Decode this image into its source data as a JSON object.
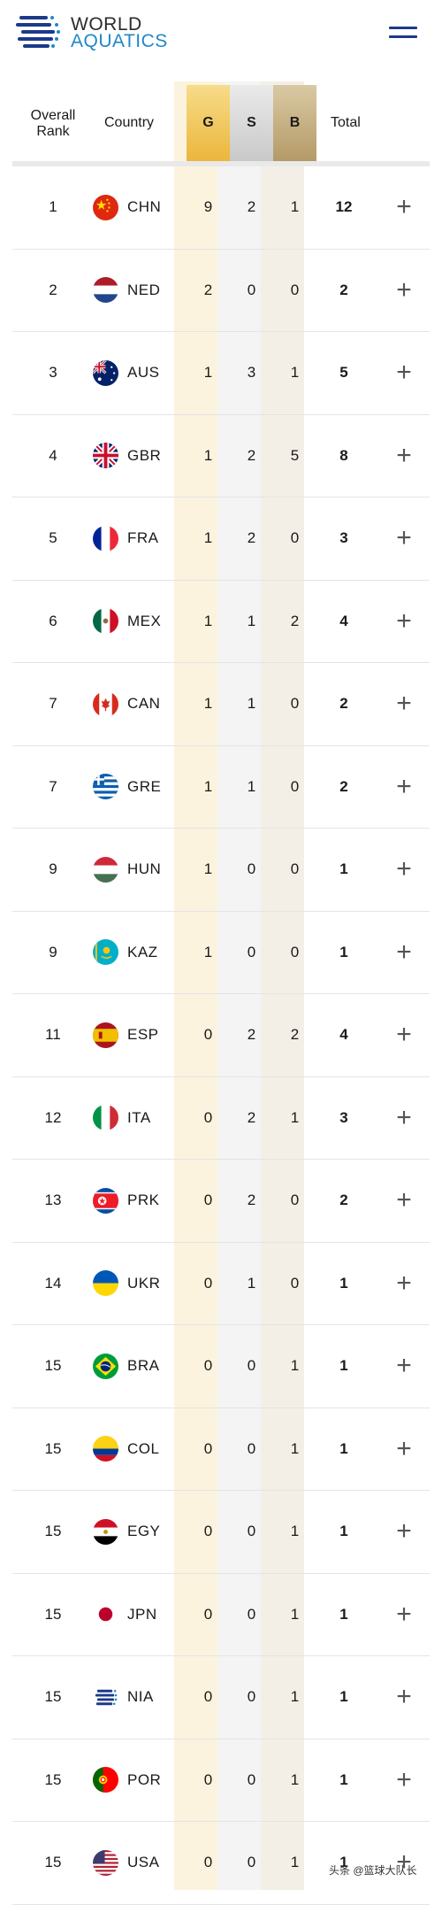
{
  "brand": {
    "line1": "WORLD",
    "line2": "AQUATICS"
  },
  "header": {
    "rank_label": "Overall Rank",
    "country_label": "Country",
    "gold_label": "G",
    "silver_label": "S",
    "bronze_label": "B",
    "total_label": "Total"
  },
  "rows": [
    {
      "rank": "1",
      "code": "CHN",
      "g": "9",
      "s": "2",
      "b": "1",
      "total": "12",
      "flag": "chn-flag-icon"
    },
    {
      "rank": "2",
      "code": "NED",
      "g": "2",
      "s": "0",
      "b": "0",
      "total": "2",
      "flag": "ned-flag-icon"
    },
    {
      "rank": "3",
      "code": "AUS",
      "g": "1",
      "s": "3",
      "b": "1",
      "total": "5",
      "flag": "aus-flag-icon"
    },
    {
      "rank": "4",
      "code": "GBR",
      "g": "1",
      "s": "2",
      "b": "5",
      "total": "8",
      "flag": "gbr-flag-icon"
    },
    {
      "rank": "5",
      "code": "FRA",
      "g": "1",
      "s": "2",
      "b": "0",
      "total": "3",
      "flag": "fra-flag-icon"
    },
    {
      "rank": "6",
      "code": "MEX",
      "g": "1",
      "s": "1",
      "b": "2",
      "total": "4",
      "flag": "mex-flag-icon"
    },
    {
      "rank": "7",
      "code": "CAN",
      "g": "1",
      "s": "1",
      "b": "0",
      "total": "2",
      "flag": "can-flag-icon"
    },
    {
      "rank": "7",
      "code": "GRE",
      "g": "1",
      "s": "1",
      "b": "0",
      "total": "2",
      "flag": "gre-flag-icon"
    },
    {
      "rank": "9",
      "code": "HUN",
      "g": "1",
      "s": "0",
      "b": "0",
      "total": "1",
      "flag": "hun-flag-icon"
    },
    {
      "rank": "9",
      "code": "KAZ",
      "g": "1",
      "s": "0",
      "b": "0",
      "total": "1",
      "flag": "kaz-flag-icon"
    },
    {
      "rank": "11",
      "code": "ESP",
      "g": "0",
      "s": "2",
      "b": "2",
      "total": "4",
      "flag": "esp-flag-icon"
    },
    {
      "rank": "12",
      "code": "ITA",
      "g": "0",
      "s": "2",
      "b": "1",
      "total": "3",
      "flag": "ita-flag-icon"
    },
    {
      "rank": "13",
      "code": "PRK",
      "g": "0",
      "s": "2",
      "b": "0",
      "total": "2",
      "flag": "prk-flag-icon"
    },
    {
      "rank": "14",
      "code": "UKR",
      "g": "0",
      "s": "1",
      "b": "0",
      "total": "1",
      "flag": "ukr-flag-icon"
    },
    {
      "rank": "15",
      "code": "BRA",
      "g": "0",
      "s": "0",
      "b": "1",
      "total": "1",
      "flag": "bra-flag-icon"
    },
    {
      "rank": "15",
      "code": "COL",
      "g": "0",
      "s": "0",
      "b": "1",
      "total": "1",
      "flag": "col-flag-icon"
    },
    {
      "rank": "15",
      "code": "EGY",
      "g": "0",
      "s": "0",
      "b": "1",
      "total": "1",
      "flag": "egy-flag-icon"
    },
    {
      "rank": "15",
      "code": "JPN",
      "g": "0",
      "s": "0",
      "b": "1",
      "total": "1",
      "flag": "jpn-flag-icon"
    },
    {
      "rank": "15",
      "code": "NIA",
      "g": "0",
      "s": "0",
      "b": "1",
      "total": "1",
      "flag": "nia-flag-icon"
    },
    {
      "rank": "15",
      "code": "POR",
      "g": "0",
      "s": "0",
      "b": "1",
      "total": "1",
      "flag": "por-flag-icon"
    },
    {
      "rank": "15",
      "code": "USA",
      "g": "0",
      "s": "0",
      "b": "1",
      "total": "1",
      "flag": "usa-flag-icon"
    }
  ],
  "expand_symbol": "+",
  "watermark": "头条 @篮球大队长",
  "colors": {
    "gold": "#ebb63c",
    "silver": "#c9c9c9",
    "bronze": "#b49a66",
    "brand_blue": "#1f88c8",
    "menu": "#1b3a8a"
  }
}
